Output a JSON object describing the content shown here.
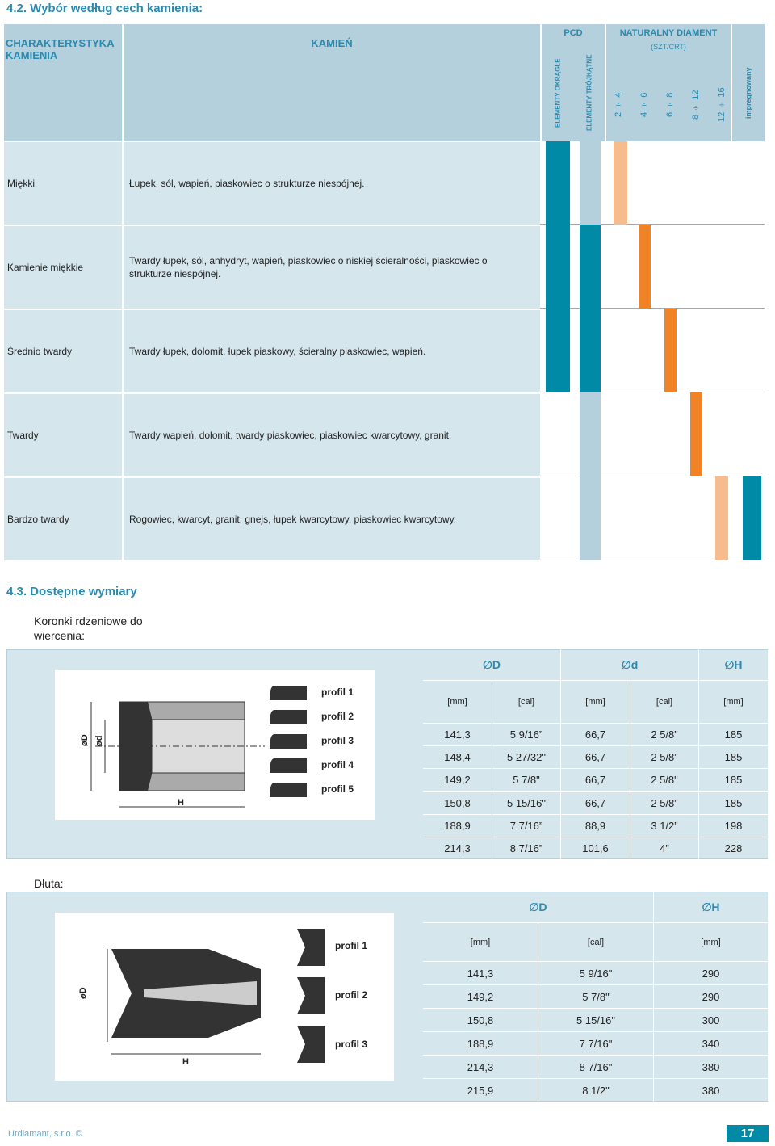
{
  "section_1": {
    "title": "4.2. Wybór według cech kamienia:",
    "header": {
      "characteristic": "CHARAKTERYSTYKA KAMIENIA",
      "stone": "KAMIEŃ",
      "pcd": "PCD",
      "pcd_round": "ELEMENTY OKRĄGŁE",
      "pcd_triangular": "ELEMENTY TRÓJKĄTNE",
      "natural": "NATURALNY DIAMENT",
      "natural_unit": "(SZT/CRT)",
      "natural_sizes": [
        "2 ÷ 4",
        "4 ÷ 6",
        "6 ÷ 8",
        "8 ÷ 12",
        "12 ÷ 16"
      ],
      "impregnated": "impregnowany"
    },
    "rows": [
      {
        "name": "Miękki",
        "description": "Łupek, sól, wapień, piaskowiec o strukturze niespójnej."
      },
      {
        "name": "Kamienie miękkie",
        "description": "Twardy łupek, sól, anhydryt, wapień, piaskowiec o niskiej ścieralności, piaskowiec o strukturze niespójnej."
      },
      {
        "name": "Średnio twardy",
        "description": "Twardy łupek, dolomit, łupek piaskowy, ścieralny piaskowiec, wapień."
      },
      {
        "name": "Twardy",
        "description": "Twardy wapień, dolomit, twardy piaskowiec, piaskowiec kwarcytowy, granit."
      },
      {
        "name": "Bardzo twardy",
        "description": "Rogowiec, kwarcyt, granit, gnejs, łupek kwarcytowy, piaskowiec kwarcytowy."
      }
    ]
  },
  "section_2": {
    "title": "4.3. Dostępne wymiary",
    "core_bits": {
      "label": "Koronki rdzeniowe do wiercenia:",
      "diagram": {
        "profiles": [
          "profil 1",
          "profil 2",
          "profil 3",
          "profil 4",
          "profil 5"
        ],
        "dims": [
          "øD",
          "ød",
          "H"
        ]
      },
      "table": {
        "headers": [
          "∅D",
          "∅d",
          "∅H"
        ],
        "units": [
          "[mm]",
          "[cal]",
          "[mm]",
          "[cal]",
          "[mm]"
        ],
        "rows": [
          [
            "141,3",
            "5 9/16”",
            "66,7",
            "2 5/8”",
            "185"
          ],
          [
            "148,4",
            "5 27/32\"",
            "66,7",
            "2 5/8”",
            "185"
          ],
          [
            "149,2",
            "5 7/8\"",
            "66,7",
            "2 5/8\"",
            "185"
          ],
          [
            "150,8",
            "5 15/16\"",
            "66,7",
            "2 5/8”",
            "185"
          ],
          [
            "188,9",
            "7 7/16”",
            "88,9",
            "3 1/2”",
            "198"
          ],
          [
            "214,3",
            "8 7/16”",
            "101,6",
            "4”",
            "228"
          ]
        ]
      }
    },
    "chisels": {
      "label": "Dłuta:",
      "diagram": {
        "profiles": [
          "profil 1",
          "profil 2",
          "profil 3"
        ],
        "dims": [
          "øD",
          "H"
        ]
      },
      "table": {
        "headers": [
          "∅D",
          "∅H"
        ],
        "units": [
          "[mm]",
          "[cal]",
          "[mm]"
        ],
        "rows": [
          [
            "141,3",
            "5 9/16\"",
            "290"
          ],
          [
            "149,2",
            "5 7/8\"",
            "290"
          ],
          [
            "150,8",
            "5 15/16\"",
            "300"
          ],
          [
            "188,9",
            "7 7/16\"",
            "340"
          ],
          [
            "214,3",
            "8 7/16\"",
            "380"
          ],
          [
            "215,9",
            "8 1/2\"",
            "380"
          ]
        ]
      }
    }
  },
  "footer": {
    "company": "Urdiamant, s.r.o. ©",
    "page": "17"
  }
}
